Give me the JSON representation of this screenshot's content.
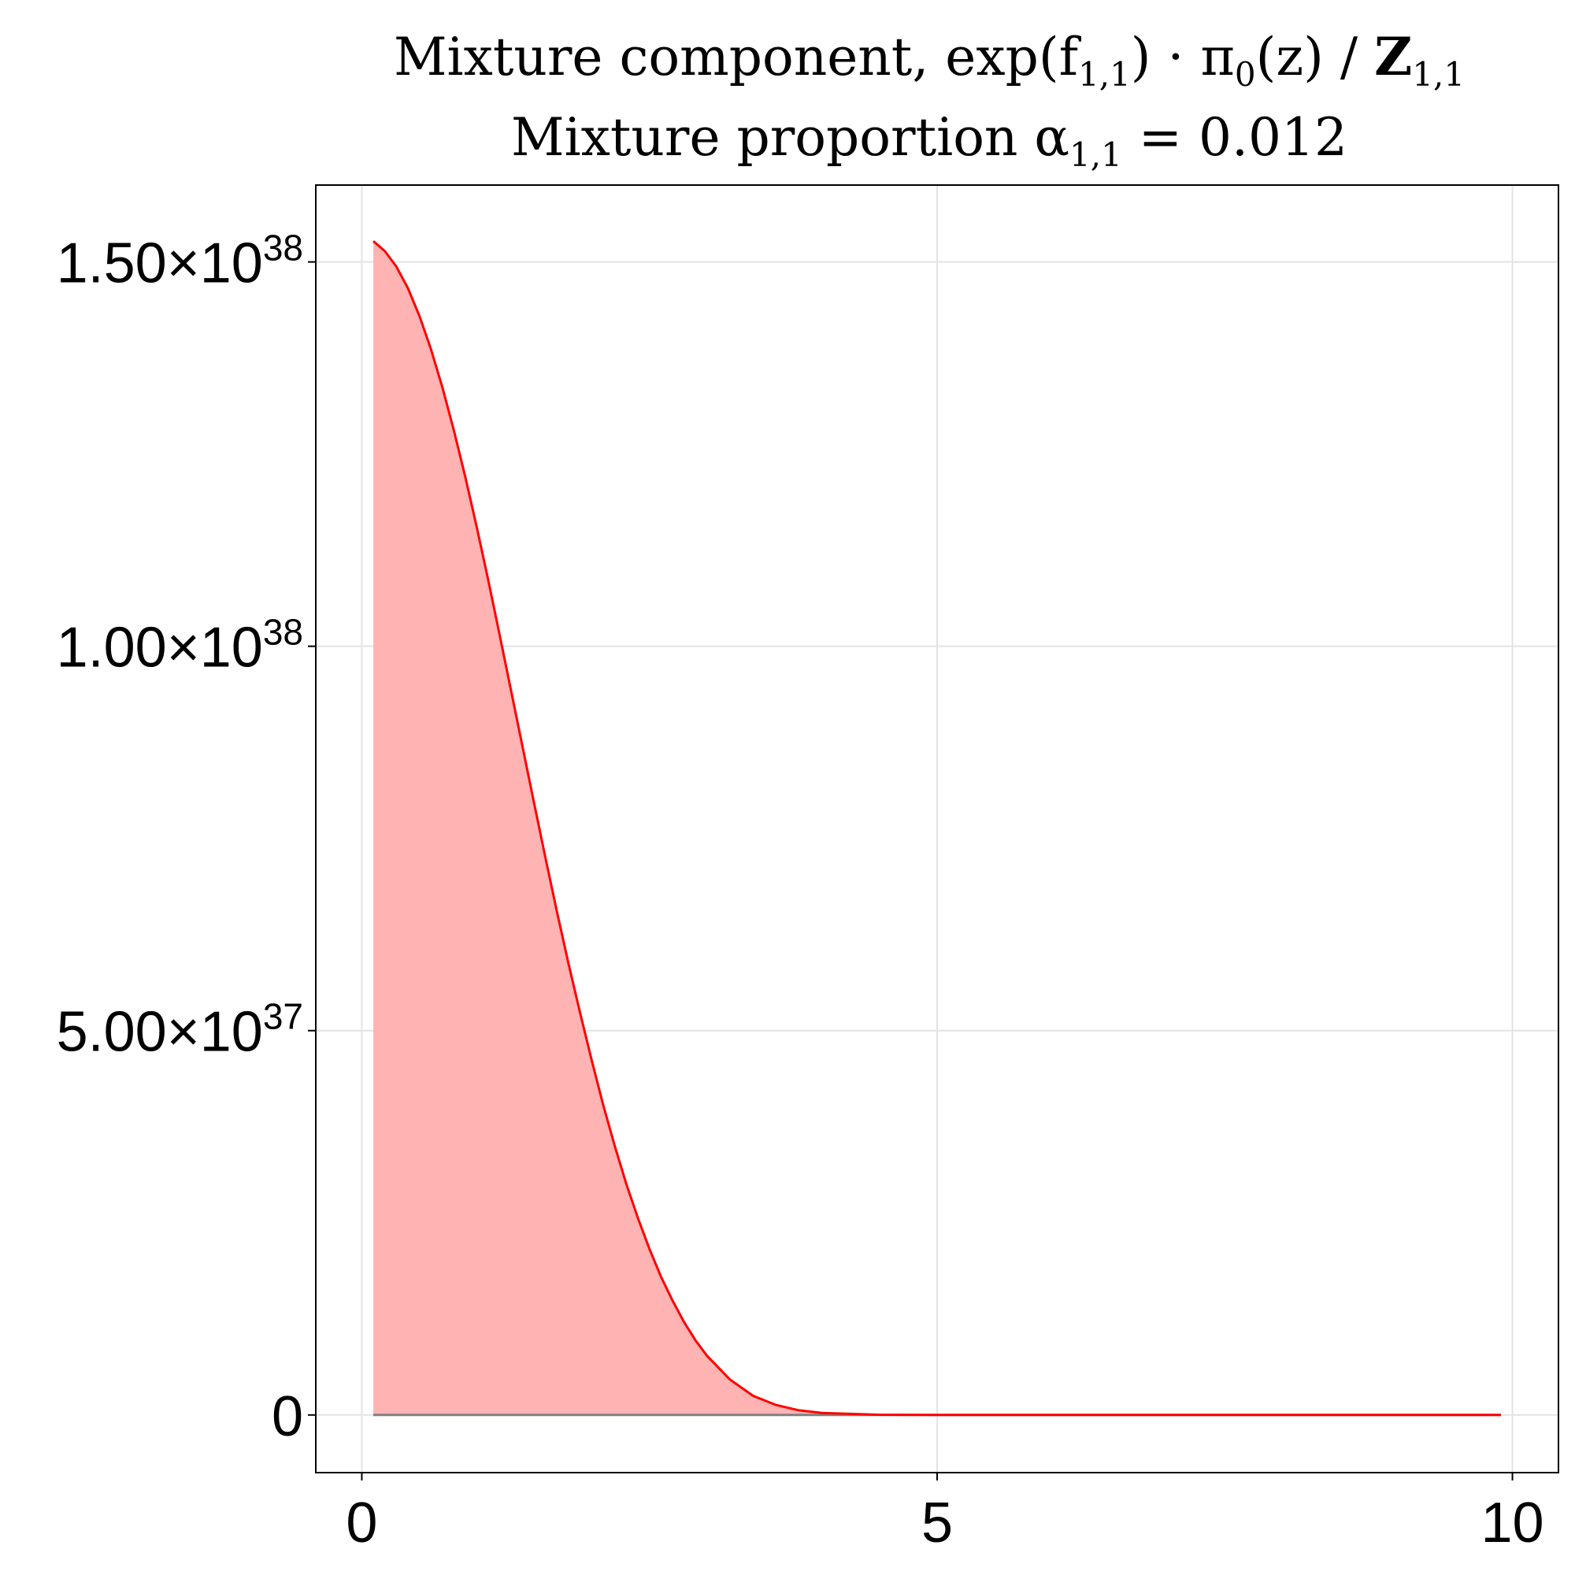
{
  "chart_data": {
    "type": "area",
    "title_line1": "Mixture component, exp(f",
    "title_sub1": "1,1",
    "title_mid": ") · π",
    "title_sub0": "0",
    "title_mid2": "(z) / ",
    "title_bold": "Z",
    "title_sub2": "1,1",
    "title_line2_prefix": "Mixture proportion α",
    "title_line2_sub": "1,1",
    "title_line2_suffix": " = 0.012",
    "xlabel": "",
    "ylabel": "",
    "xlim": [
      -0.4,
      10.4
    ],
    "ylim": [
      -7.5e+36,
      1.6e+38
    ],
    "grid": true,
    "x_ticks": [
      {
        "value": 0,
        "label": "0"
      },
      {
        "value": 5,
        "label": "5"
      },
      {
        "value": 10,
        "label": "10"
      }
    ],
    "y_ticks": [
      {
        "value": 0,
        "mant": "0",
        "exp": ""
      },
      {
        "value": 5e+37,
        "mant": "5.00×10",
        "exp": "37"
      },
      {
        "value": 1e+38,
        "mant": "1.00×10",
        "exp": "38"
      },
      {
        "value": 1.5e+38,
        "mant": "1.50×10",
        "exp": "38"
      }
    ],
    "series": [
      {
        "x": [
          0.1,
          0.2,
          0.3,
          0.4,
          0.5,
          0.6,
          0.7,
          0.8,
          0.9,
          1.0,
          1.1,
          1.2,
          1.3,
          1.4,
          1.5,
          1.6,
          1.7,
          1.8,
          1.9,
          2.0,
          2.1,
          2.2,
          2.3,
          2.4,
          2.5,
          2.6,
          2.7,
          2.8,
          2.9,
          3.0,
          3.2,
          3.4,
          3.6,
          3.8,
          4.0,
          4.5,
          5.0,
          6.0,
          7.0,
          8.0,
          9.0,
          9.9
        ],
        "y": [
          1.527e+38,
          1.514e+38,
          1.494e+38,
          1.466e+38,
          1.43e+38,
          1.387e+38,
          1.337e+38,
          1.281e+38,
          1.22e+38,
          1.154e+38,
          1.085e+38,
          1.013e+38,
          9.4e+37,
          8.67e+37,
          7.94e+37,
          7.22e+37,
          6.52e+37,
          5.85e+37,
          5.21e+37,
          4.6e+37,
          4.02e+37,
          3.49e+37,
          3e+37,
          2.56e+37,
          2.16e+37,
          1.8e+37,
          1.49e+37,
          1.21e+37,
          9.7e+36,
          7.7e+36,
          4.6e+36,
          2.5e+36,
          1.3e+36,
          6e+35,
          2.6e+35,
          3e+34,
          2e+33,
          0,
          0,
          0,
          0,
          0
        ]
      }
    ],
    "colors": {
      "line": "#ff0000",
      "fill": "#ffb3b3",
      "baseline": "#808080",
      "grid": "#e3e3e3",
      "axis": "#000000"
    }
  }
}
